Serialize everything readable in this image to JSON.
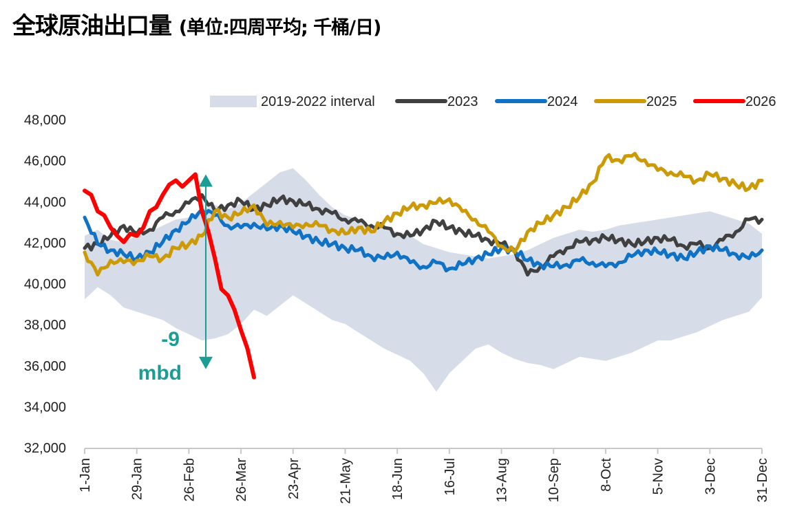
{
  "title": {
    "main": "全球原油出口量",
    "sub": "(单位:四周平均; 千桶/日)"
  },
  "chart_data": {
    "type": "line",
    "title": "全球原油出口量 (单位:四周平均; 千桶/日)",
    "xlabel": "",
    "ylabel": "千桶/日",
    "ylim": [
      32000,
      48000
    ],
    "yticks": [
      "32,000",
      "34,000",
      "36,000",
      "38,000",
      "40,000",
      "42,000",
      "44,000",
      "46,000",
      "48,000"
    ],
    "ytick_values": [
      32000,
      34000,
      36000,
      38000,
      40000,
      42000,
      44000,
      46000,
      48000
    ],
    "x_unit": "week of year (0 = 1-Jan, 52 = 31-Dec)",
    "xlim": [
      0,
      52
    ],
    "xticks": [
      "1-Jan",
      "29-Jan",
      "26-Feb",
      "26-Mar",
      "23-Apr",
      "21-May",
      "18-Jun",
      "16-Jul",
      "13-Aug",
      "10-Sep",
      "8-Oct",
      "5-Nov",
      "3-Dec",
      "31-Dec"
    ],
    "xtick_values": [
      0,
      4,
      8,
      12,
      16,
      20,
      24,
      28,
      32,
      36,
      40,
      44,
      48,
      52
    ],
    "grid": false,
    "legend_position": "top",
    "legend": [
      {
        "name": "2019-2022 interval",
        "type": "area",
        "color": "#d6dde8"
      },
      {
        "name": "2023",
        "type": "line",
        "color": "#404040"
      },
      {
        "name": "2024",
        "type": "line",
        "color": "#0f72c4"
      },
      {
        "name": "2025",
        "type": "line",
        "color": "#cc9a06"
      },
      {
        "name": "2026",
        "type": "line",
        "color": "#ff0000"
      }
    ],
    "band": {
      "name": "2019-2022 interval",
      "color": "#d6dde8",
      "x": [
        0,
        1,
        2,
        3,
        4,
        5,
        6,
        7,
        8,
        9,
        10,
        11,
        12,
        13,
        14,
        15,
        16,
        17,
        18,
        19,
        20,
        21,
        22,
        23,
        24,
        25,
        26,
        27,
        28,
        29,
        30,
        31,
        32,
        33,
        34,
        35,
        36,
        37,
        38,
        39,
        40,
        41,
        42,
        43,
        44,
        45,
        46,
        47,
        48,
        49,
        50,
        51,
        52
      ],
      "upper": [
        42300,
        42600,
        42100,
        42000,
        42300,
        42500,
        42800,
        43100,
        43200,
        43600,
        43800,
        43600,
        43900,
        44400,
        44900,
        45400,
        45600,
        45000,
        44300,
        43700,
        43300,
        43100,
        42800,
        42600,
        42500,
        42300,
        41900,
        41700,
        41500,
        41400,
        41300,
        41200,
        41300,
        41400,
        41600,
        41900,
        42200,
        42400,
        42600,
        42500,
        42600,
        42800,
        42900,
        43000,
        43100,
        43200,
        43300,
        43400,
        43500,
        43300,
        43100,
        42900,
        42400
      ],
      "lower": [
        39200,
        39800,
        39400,
        38800,
        38600,
        38400,
        38200,
        37800,
        37500,
        37200,
        37300,
        37500,
        38000,
        38700,
        38400,
        38900,
        39400,
        39000,
        38600,
        38200,
        38000,
        37600,
        37200,
        36800,
        36500,
        36200,
        35600,
        34700,
        35600,
        36200,
        36800,
        37000,
        36600,
        36300,
        36100,
        36000,
        35800,
        36100,
        36400,
        36300,
        36200,
        36400,
        36600,
        36900,
        37200,
        37200,
        37400,
        37600,
        37900,
        38200,
        38400,
        38600,
        39300
      ]
    },
    "series": [
      {
        "name": "2023",
        "color": "#404040",
        "x": [
          0,
          1,
          2,
          3,
          4,
          5,
          6,
          7,
          8,
          9,
          10,
          11,
          12,
          13,
          14,
          15,
          16,
          17,
          18,
          19,
          20,
          21,
          22,
          23,
          24,
          25,
          26,
          27,
          28,
          29,
          30,
          31,
          32,
          33,
          34,
          35,
          36,
          37,
          38,
          39,
          40,
          41,
          42,
          43,
          44,
          45,
          46,
          47,
          48,
          49,
          50,
          51,
          52
        ],
        "values": [
          41700,
          41900,
          42300,
          42800,
          42400,
          42600,
          43200,
          43500,
          43900,
          44300,
          43500,
          43800,
          44000,
          43600,
          43800,
          44100,
          44000,
          43800,
          43600,
          43400,
          43100,
          43000,
          42800,
          42700,
          42400,
          42300,
          42600,
          43000,
          42700,
          42500,
          42300,
          42100,
          41900,
          41600,
          40400,
          40800,
          41300,
          41700,
          42000,
          42100,
          42200,
          42100,
          41900,
          42000,
          42200,
          42100,
          41800,
          41900,
          41700,
          42100,
          42500,
          43100,
          43100
        ]
      },
      {
        "name": "2024",
        "color": "#0f72c4",
        "x": [
          0,
          1,
          2,
          3,
          4,
          5,
          6,
          7,
          8,
          9,
          10,
          11,
          12,
          13,
          14,
          15,
          16,
          17,
          18,
          19,
          20,
          21,
          22,
          23,
          24,
          25,
          26,
          27,
          28,
          29,
          30,
          31,
          32,
          33,
          34,
          35,
          36,
          37,
          38,
          39,
          40,
          41,
          42,
          43,
          44,
          45,
          46,
          47,
          48,
          49,
          50,
          51,
          52
        ],
        "values": [
          43200,
          41900,
          41600,
          41400,
          41200,
          41500,
          42000,
          42600,
          43000,
          43600,
          43300,
          42800,
          42700,
          42900,
          42600,
          42800,
          42500,
          42300,
          42000,
          41900,
          41700,
          41600,
          41300,
          41200,
          41500,
          41000,
          40800,
          41000,
          40700,
          40900,
          41200,
          41400,
          41700,
          41600,
          41100,
          40900,
          40800,
          40900,
          41100,
          41000,
          40800,
          41000,
          41300,
          41600,
          41500,
          41400,
          41200,
          41500,
          41800,
          41600,
          41400,
          41200,
          41600
        ]
      },
      {
        "name": "2025",
        "color": "#cc9a06",
        "x": [
          0,
          1,
          2,
          3,
          4,
          5,
          6,
          7,
          8,
          9,
          10,
          11,
          12,
          13,
          14,
          15,
          16,
          17,
          18,
          19,
          20,
          21,
          22,
          23,
          24,
          25,
          26,
          27,
          28,
          29,
          30,
          31,
          32,
          33,
          34,
          35,
          36,
          37,
          38,
          39,
          40,
          41,
          42,
          43,
          44,
          45,
          46,
          47,
          48,
          49,
          50,
          51,
          52
        ],
        "values": [
          41500,
          40400,
          41100,
          41000,
          41100,
          41300,
          41200,
          41700,
          41900,
          42300,
          43500,
          43200,
          43400,
          43800,
          42800,
          43000,
          42700,
          42900,
          42800,
          42600,
          42400,
          42700,
          42500,
          43000,
          43400,
          43700,
          43800,
          43900,
          44100,
          43500,
          43100,
          42500,
          41800,
          41500,
          42500,
          42900,
          43300,
          43700,
          44200,
          44900,
          46100,
          46000,
          46200,
          46000,
          45500,
          45400,
          45200,
          45000,
          45300,
          45100,
          44800,
          44600,
          45000
        ]
      },
      {
        "name": "2026",
        "color": "#ff0000",
        "x": [
          0,
          0.5,
          1,
          1.5,
          2,
          2.5,
          3,
          3.5,
          4,
          4.5,
          5,
          5.5,
          6,
          6.5,
          7,
          7.5,
          8,
          8.5,
          9,
          9.5,
          10,
          10.5,
          11,
          11.5,
          12,
          12.5,
          13
        ],
        "values": [
          44500,
          44300,
          43500,
          43300,
          42700,
          42300,
          42000,
          42400,
          42300,
          42700,
          43500,
          43700,
          44300,
          44800,
          45000,
          44700,
          45000,
          45300,
          43500,
          42500,
          41200,
          39700,
          39400,
          38700,
          37700,
          36800,
          35400
        ]
      }
    ],
    "annotations": [
      {
        "text_line1": "-9",
        "text_line2": "mbd",
        "type": "double-arrow",
        "x": 9.3,
        "from": 45300,
        "to": 35800,
        "color": "#1a9e94"
      }
    ]
  }
}
